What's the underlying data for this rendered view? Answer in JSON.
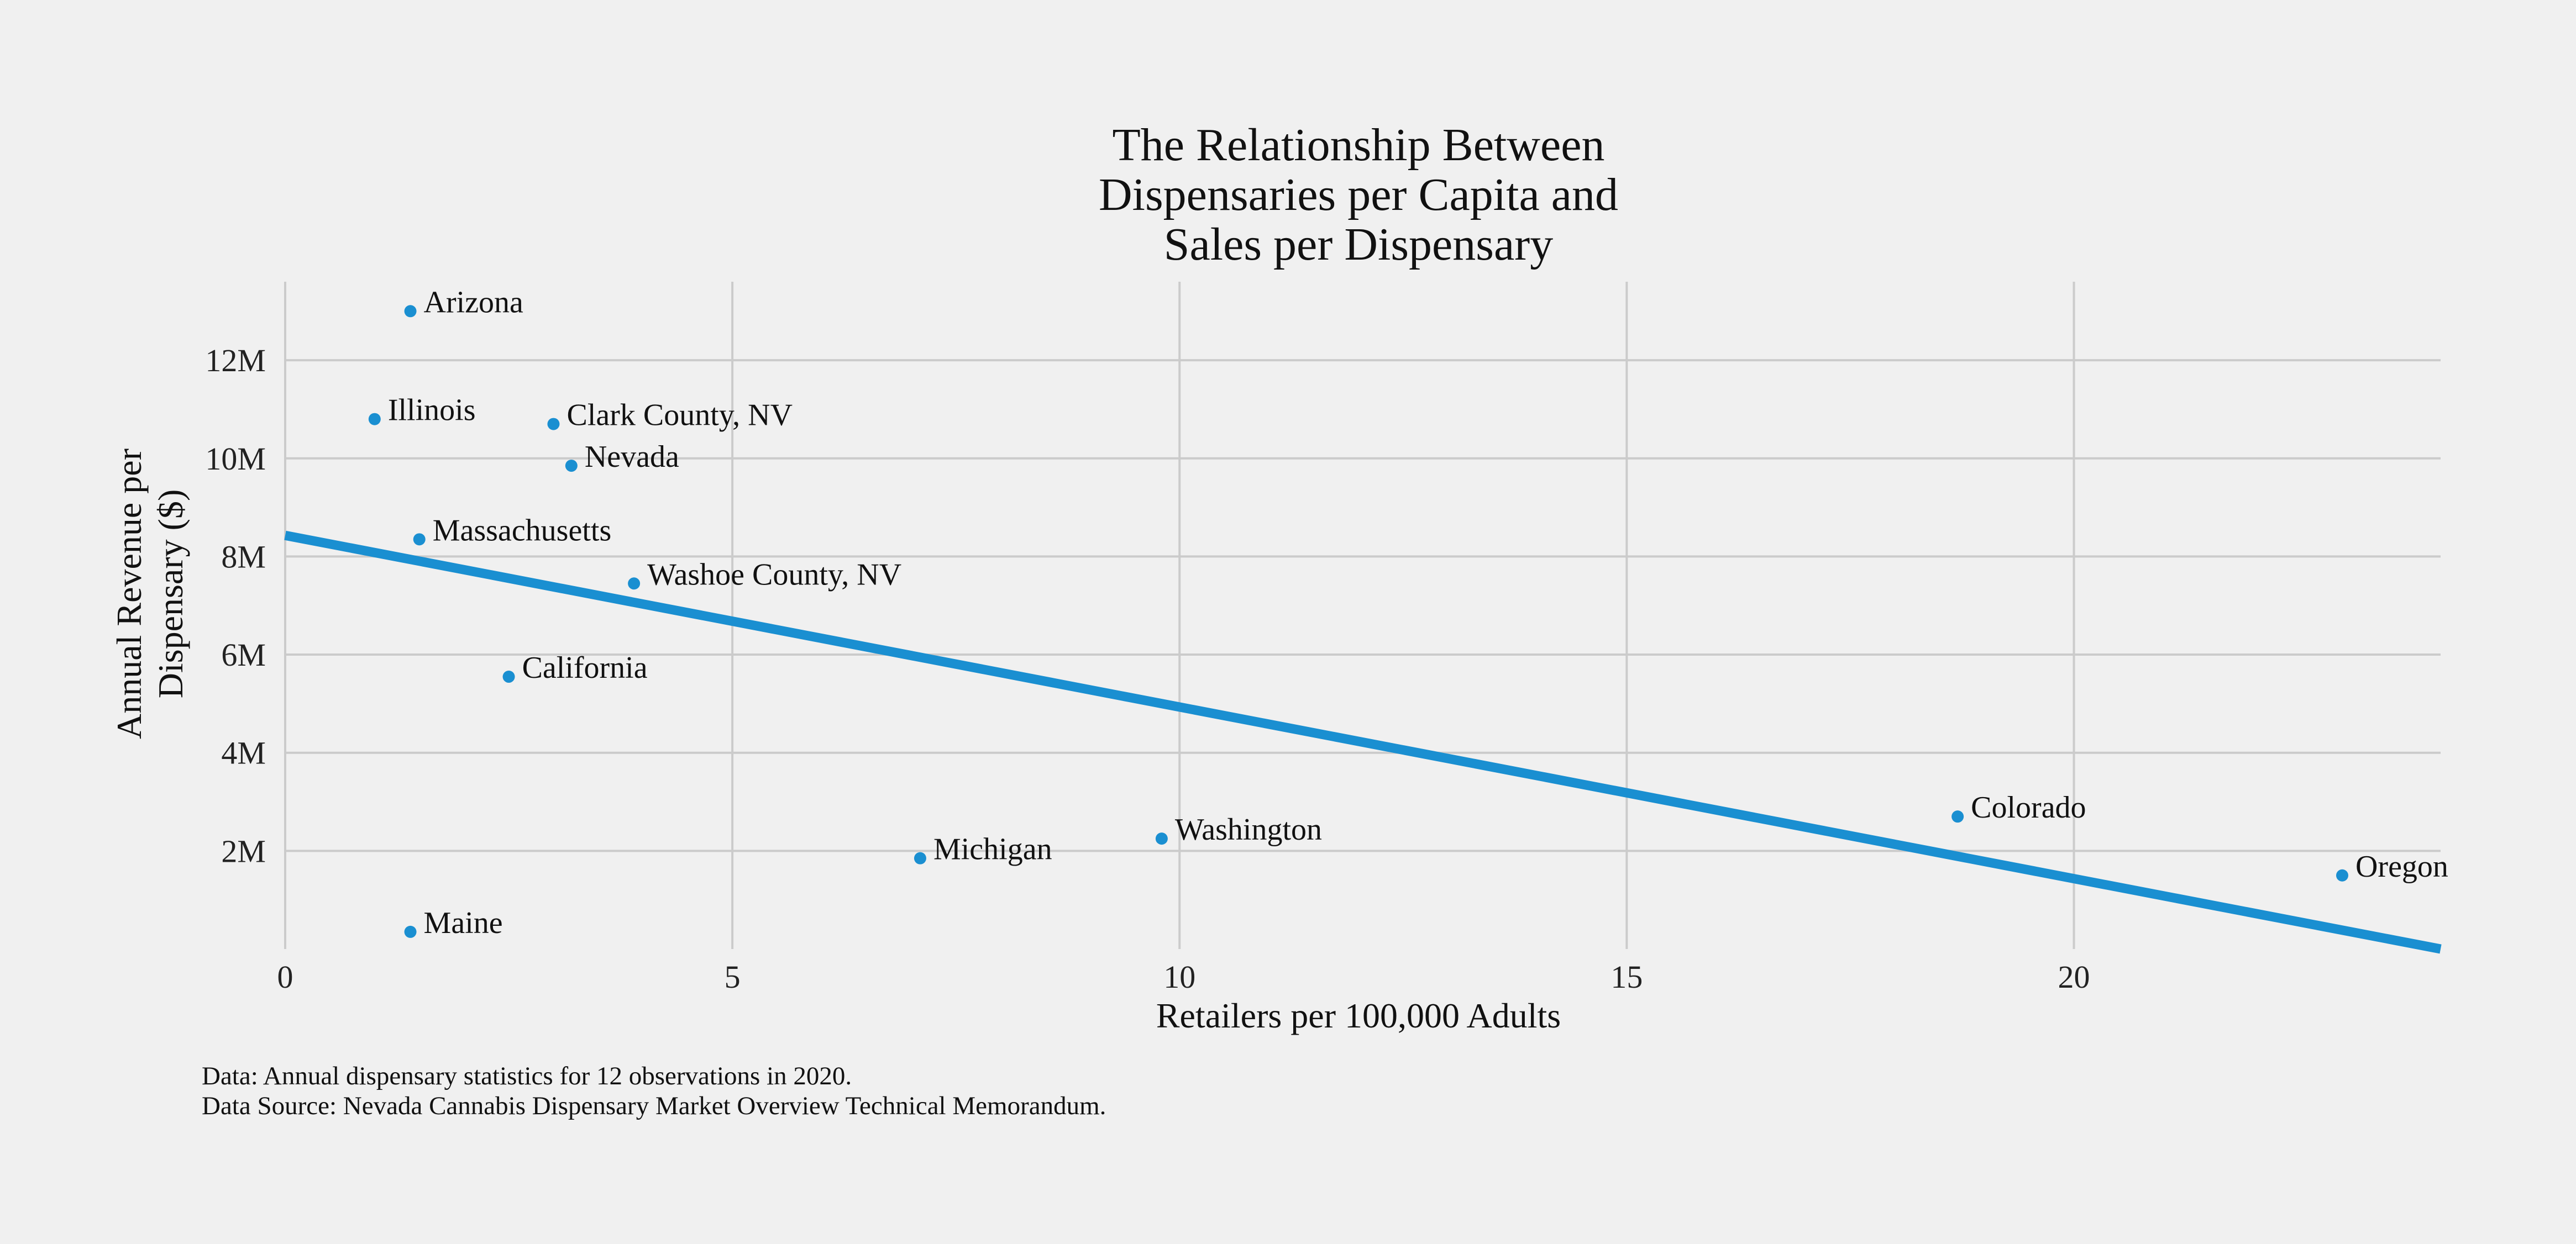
{
  "chart_data": {
    "type": "scatter",
    "title_lines": [
      "The Relationship Between",
      "Dispensaries per Capita and",
      "Sales per Dispensary"
    ],
    "xlabel": "Retailers per 100,000 Adults",
    "ylabel_lines": [
      "Annual Revenue per",
      "Dispensary ($)"
    ],
    "xlim": [
      0,
      24.1
    ],
    "ylim": [
      0,
      13.6
    ],
    "x_ticks": [
      {
        "value": 0,
        "label": "0"
      },
      {
        "value": 5,
        "label": "5"
      },
      {
        "value": 10,
        "label": "10"
      },
      {
        "value": 15,
        "label": "15"
      },
      {
        "value": 20,
        "label": "20"
      }
    ],
    "y_ticks": [
      {
        "value": 2,
        "label": "2M"
      },
      {
        "value": 4,
        "label": "4M"
      },
      {
        "value": 6,
        "label": "6M"
      },
      {
        "value": 8,
        "label": "8M"
      },
      {
        "value": 10,
        "label": "10M"
      },
      {
        "value": 12,
        "label": "12M"
      }
    ],
    "grid": true,
    "point_color": "#1a8fd1",
    "line_color": "#1a8fd1",
    "points": [
      {
        "label": "Arizona",
        "x": 1.4,
        "y": 13.0
      },
      {
        "label": "Illinois",
        "x": 1.0,
        "y": 10.8
      },
      {
        "label": "Clark County, NV",
        "x": 3.0,
        "y": 10.7
      },
      {
        "label": "Nevada",
        "x": 3.2,
        "y": 9.85
      },
      {
        "label": "Massachusetts",
        "x": 1.5,
        "y": 8.35
      },
      {
        "label": "Washoe County, NV",
        "x": 3.9,
        "y": 7.45
      },
      {
        "label": "California",
        "x": 2.5,
        "y": 5.55
      },
      {
        "label": "Michigan",
        "x": 7.1,
        "y": 1.85
      },
      {
        "label": "Washington",
        "x": 9.8,
        "y": 2.25
      },
      {
        "label": "Colorado",
        "x": 18.7,
        "y": 2.7
      },
      {
        "label": "Oregon",
        "x": 23.0,
        "y": 1.5
      },
      {
        "label": "Maine",
        "x": 1.4,
        "y": 0.35
      }
    ],
    "trend_line": {
      "x": [
        0,
        24.1
      ],
      "y": [
        8.43,
        0.0
      ]
    }
  },
  "footnotes": [
    "Data: Annual dispensary statistics for 12 observations in 2020.",
    "Data Source: Nevada Cannabis Dispensary Market Overview Technical Memorandum."
  ]
}
